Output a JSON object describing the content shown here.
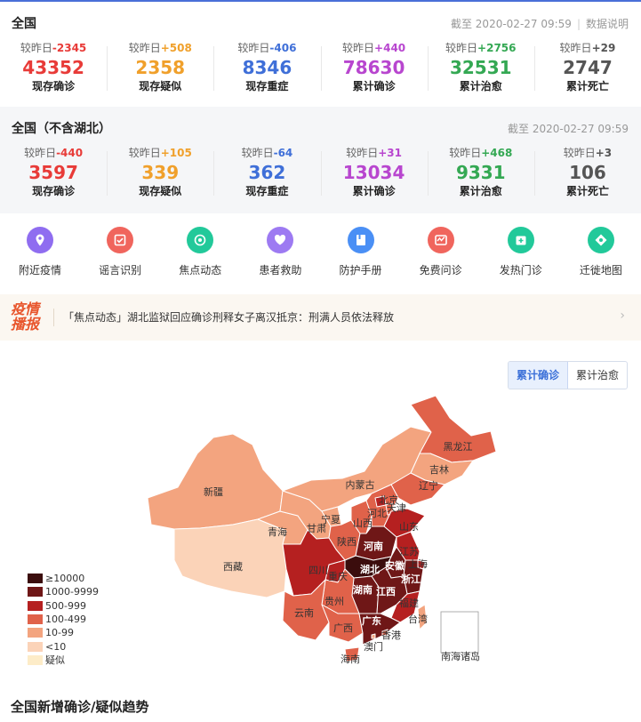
{
  "national": {
    "title": "全国",
    "timestamp": "截至 2020-02-27 09:59",
    "notes_link": "数据说明",
    "stats": [
      {
        "delta_label": "较昨日",
        "delta": "-2345",
        "value": "43352",
        "label": "现存确诊",
        "color": "#e83b38"
      },
      {
        "delta_label": "较昨日",
        "delta": "+508",
        "value": "2358",
        "label": "现存疑似",
        "color": "#f0a02b"
      },
      {
        "delta_label": "较昨日",
        "delta": "-406",
        "value": "8346",
        "label": "现存重症",
        "color": "#3f6fd8"
      },
      {
        "delta_label": "较昨日",
        "delta": "+440",
        "value": "78630",
        "label": "累计确诊",
        "color": "#b846cf"
      },
      {
        "delta_label": "较昨日",
        "delta": "+2756",
        "value": "32531",
        "label": "累计治愈",
        "color": "#34a853"
      },
      {
        "delta_label": "较昨日",
        "delta": "+29",
        "value": "2747",
        "label": "累计死亡",
        "color": "#555555"
      }
    ]
  },
  "excluding_hubei": {
    "title": "全国（不含湖北）",
    "timestamp": "截至 2020-02-27 09:59",
    "stats": [
      {
        "delta_label": "较昨日",
        "delta": "-440",
        "value": "3597",
        "label": "现存确诊",
        "color": "#e83b38"
      },
      {
        "delta_label": "较昨日",
        "delta": "+105",
        "value": "339",
        "label": "现存疑似",
        "color": "#f0a02b"
      },
      {
        "delta_label": "较昨日",
        "delta": "-64",
        "value": "362",
        "label": "现存重症",
        "color": "#3f6fd8"
      },
      {
        "delta_label": "较昨日",
        "delta": "+31",
        "value": "13034",
        "label": "累计确诊",
        "color": "#b846cf"
      },
      {
        "delta_label": "较昨日",
        "delta": "+468",
        "value": "9331",
        "label": "累计治愈",
        "color": "#34a853"
      },
      {
        "delta_label": "较昨日",
        "delta": "+3",
        "value": "106",
        "label": "累计死亡",
        "color": "#555555"
      }
    ]
  },
  "shortcuts": [
    {
      "label": "附近疫情",
      "icon": "location-icon",
      "color": "#8f6df0"
    },
    {
      "label": "谣言识别",
      "icon": "rumor-check-icon",
      "color": "#f0655d"
    },
    {
      "label": "焦点动态",
      "icon": "focus-news-icon",
      "color": "#22c99a"
    },
    {
      "label": "患者救助",
      "icon": "heart-help-icon",
      "color": "#9d7af2"
    },
    {
      "label": "防护手册",
      "icon": "handbook-icon",
      "color": "#4a8ff5"
    },
    {
      "label": "免费问诊",
      "icon": "consultation-icon",
      "color": "#f0655d"
    },
    {
      "label": "发热门诊",
      "icon": "fever-clinic-icon",
      "color": "#22c99a"
    },
    {
      "label": "迁徙地图",
      "icon": "migration-map-icon",
      "color": "#22c99a"
    }
  ],
  "news": {
    "logo_line1": "疫情",
    "logo_line2": "播报",
    "text": "「焦点动态」湖北监狱回应确诊刑释女子离汉抵京：刑满人员依法释放"
  },
  "map_toggle": {
    "active": "累计确诊",
    "inactive": "累计治愈"
  },
  "legend": [
    {
      "label": "≥10000",
      "color": "#3b0d0d"
    },
    {
      "label": "1000-9999",
      "color": "#6f1717"
    },
    {
      "label": "500-999",
      "color": "#b52020"
    },
    {
      "label": "100-499",
      "color": "#e0624a"
    },
    {
      "label": "10-99",
      "color": "#f3a47f"
    },
    {
      "label": "<10",
      "color": "#fbd3b8"
    },
    {
      "label": "疑似",
      "color": "#fdecc8"
    }
  ],
  "map_labels": {
    "heilongjiang": "黑龙江",
    "jilin": "吉林",
    "liaoning": "辽宁",
    "neimenggu": "内蒙古",
    "xinjiang": "新疆",
    "xizang": "西藏",
    "qinghai": "青海",
    "gansu": "甘肃",
    "ningxia": "宁夏",
    "beijing": "北京",
    "tianjin": "天津",
    "hebei": "河北",
    "shanxi": "山西",
    "shandong": "山东",
    "shaanxi": "陕西",
    "henan": "河南",
    "jiangsu": "江苏",
    "anhui": "安徽",
    "shanghai": "上海",
    "sichuan": "四川",
    "chongqing": "重庆",
    "hubei": "湖北",
    "zhejiang": "浙江",
    "hunan": "湖南",
    "jiangxi": "江西",
    "guizhou": "贵州",
    "fujian": "福建",
    "yunnan": "云南",
    "guangxi": "广西",
    "guangdong": "广东",
    "taiwan": "台湾",
    "hongkong": "香港",
    "macau": "澳门",
    "hainan": "海南",
    "south_sea": "南海诸岛"
  },
  "trend_title": "全国新增确诊/疑似趋势"
}
